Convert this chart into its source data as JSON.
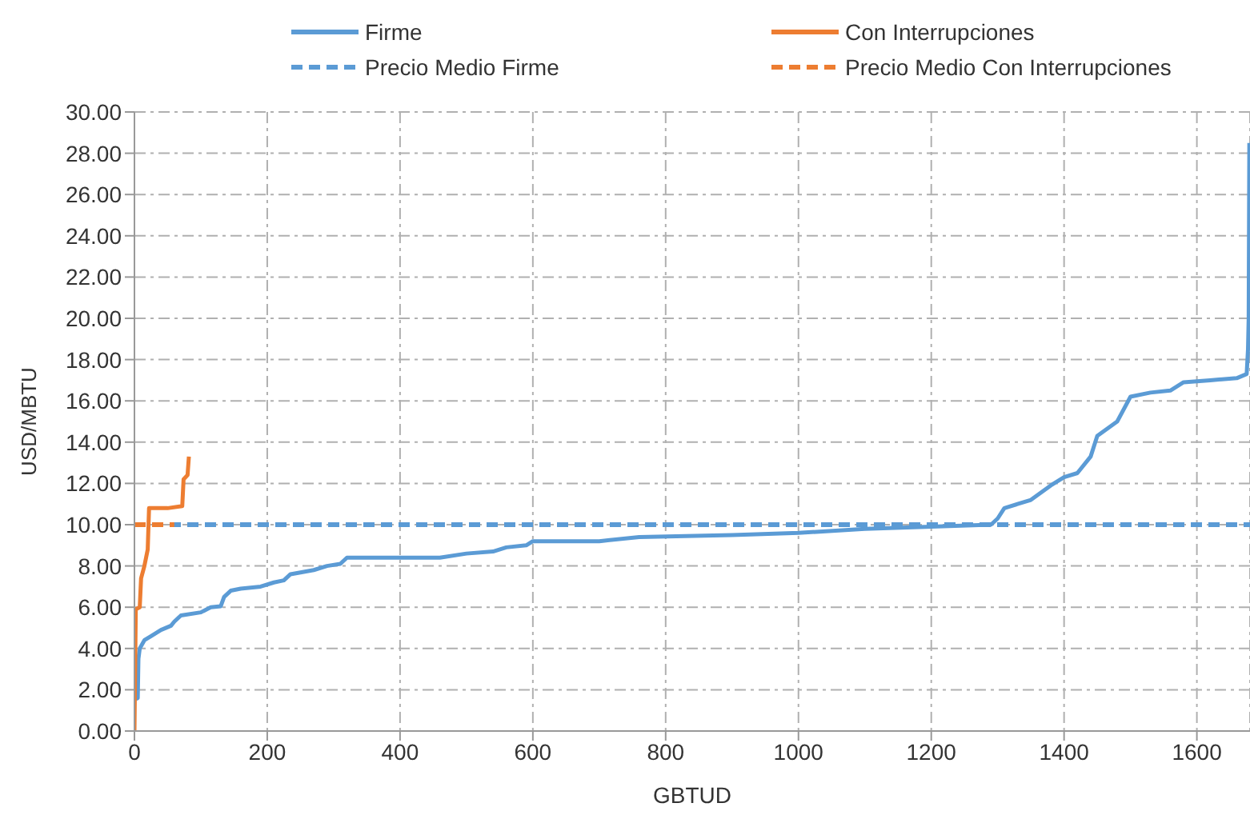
{
  "chart_data": {
    "type": "line",
    "xlabel": "GBTUD",
    "ylabel": "USD/MBTU",
    "xlim": [
      0,
      1680
    ],
    "xticks": [
      0,
      200,
      400,
      600,
      800,
      1000,
      1200,
      1400,
      1600
    ],
    "ylim": [
      0,
      30
    ],
    "yticks": [
      {
        "value": 0,
        "label": "0.00"
      },
      {
        "value": 2,
        "label": "2.00"
      },
      {
        "value": 4,
        "label": "4.00"
      },
      {
        "value": 6,
        "label": "6.00"
      },
      {
        "value": 8,
        "label": "8.00"
      },
      {
        "value": 10,
        "label": "10.00"
      },
      {
        "value": 12,
        "label": "12.00"
      },
      {
        "value": 14,
        "label": "14.00"
      },
      {
        "value": 16,
        "label": "16.00"
      },
      {
        "value": 18,
        "label": "18.00"
      },
      {
        "value": 20,
        "label": "20.00"
      },
      {
        "value": 22,
        "label": "22.00"
      },
      {
        "value": 24,
        "label": "24.00"
      },
      {
        "value": 26,
        "label": "26.00"
      },
      {
        "value": 28,
        "label": "28.00"
      },
      {
        "value": 30,
        "label": "30.00"
      }
    ],
    "grid": true,
    "legend": "top",
    "marker": "none",
    "series": [
      {
        "name": "Firme",
        "color": "#5b9bd5",
        "line_style": "solid",
        "x": [
          2,
          5,
          6,
          8,
          15,
          25,
          40,
          55,
          60,
          70,
          100,
          115,
          130,
          135,
          145,
          160,
          190,
          210,
          225,
          235,
          270,
          290,
          310,
          320,
          360,
          460,
          500,
          540,
          560,
          590,
          600,
          700,
          760,
          900,
          1000,
          1100,
          1200,
          1290,
          1300,
          1310,
          1330,
          1350,
          1380,
          1400,
          1420,
          1440,
          1450,
          1480,
          1500,
          1530,
          1560,
          1580,
          1620,
          1660,
          1675,
          1677,
          1678,
          1679
        ],
        "values": [
          1.55,
          1.6,
          3.5,
          4.0,
          4.4,
          4.6,
          4.9,
          5.1,
          5.3,
          5.6,
          5.75,
          6.0,
          6.05,
          6.5,
          6.8,
          6.9,
          7.0,
          7.2,
          7.3,
          7.6,
          7.8,
          8.0,
          8.1,
          8.4,
          8.4,
          8.4,
          8.6,
          8.7,
          8.9,
          9.0,
          9.2,
          9.2,
          9.4,
          9.5,
          9.6,
          9.8,
          9.9,
          10.0,
          10.3,
          10.8,
          11.0,
          11.2,
          11.9,
          12.3,
          12.5,
          13.3,
          14.3,
          15.0,
          16.2,
          16.4,
          16.5,
          16.9,
          17.0,
          17.1,
          17.3,
          18.5,
          20.0,
          28.5
        ]
      },
      {
        "name": "Con Interrupciones",
        "color": "#ed7d31",
        "line_style": "solid",
        "x": [
          0,
          2,
          8,
          10,
          15,
          20,
          22,
          50,
          72,
          74,
          80,
          82
        ],
        "values": [
          0,
          5.9,
          6.0,
          7.4,
          8.0,
          8.8,
          10.8,
          10.8,
          10.9,
          12.2,
          12.4,
          13.3
        ]
      },
      {
        "name": "Precio Medio Firme",
        "color": "#5b9bd5",
        "line_style": "dashed",
        "x": [
          0,
          1680
        ],
        "values": [
          10.0,
          10.0
        ]
      },
      {
        "name": "Precio Medio Con Interrupciones",
        "color": "#ed7d31",
        "line_style": "dashed",
        "x": [
          0,
          60
        ],
        "values": [
          10.0,
          10.0
        ]
      }
    ]
  }
}
